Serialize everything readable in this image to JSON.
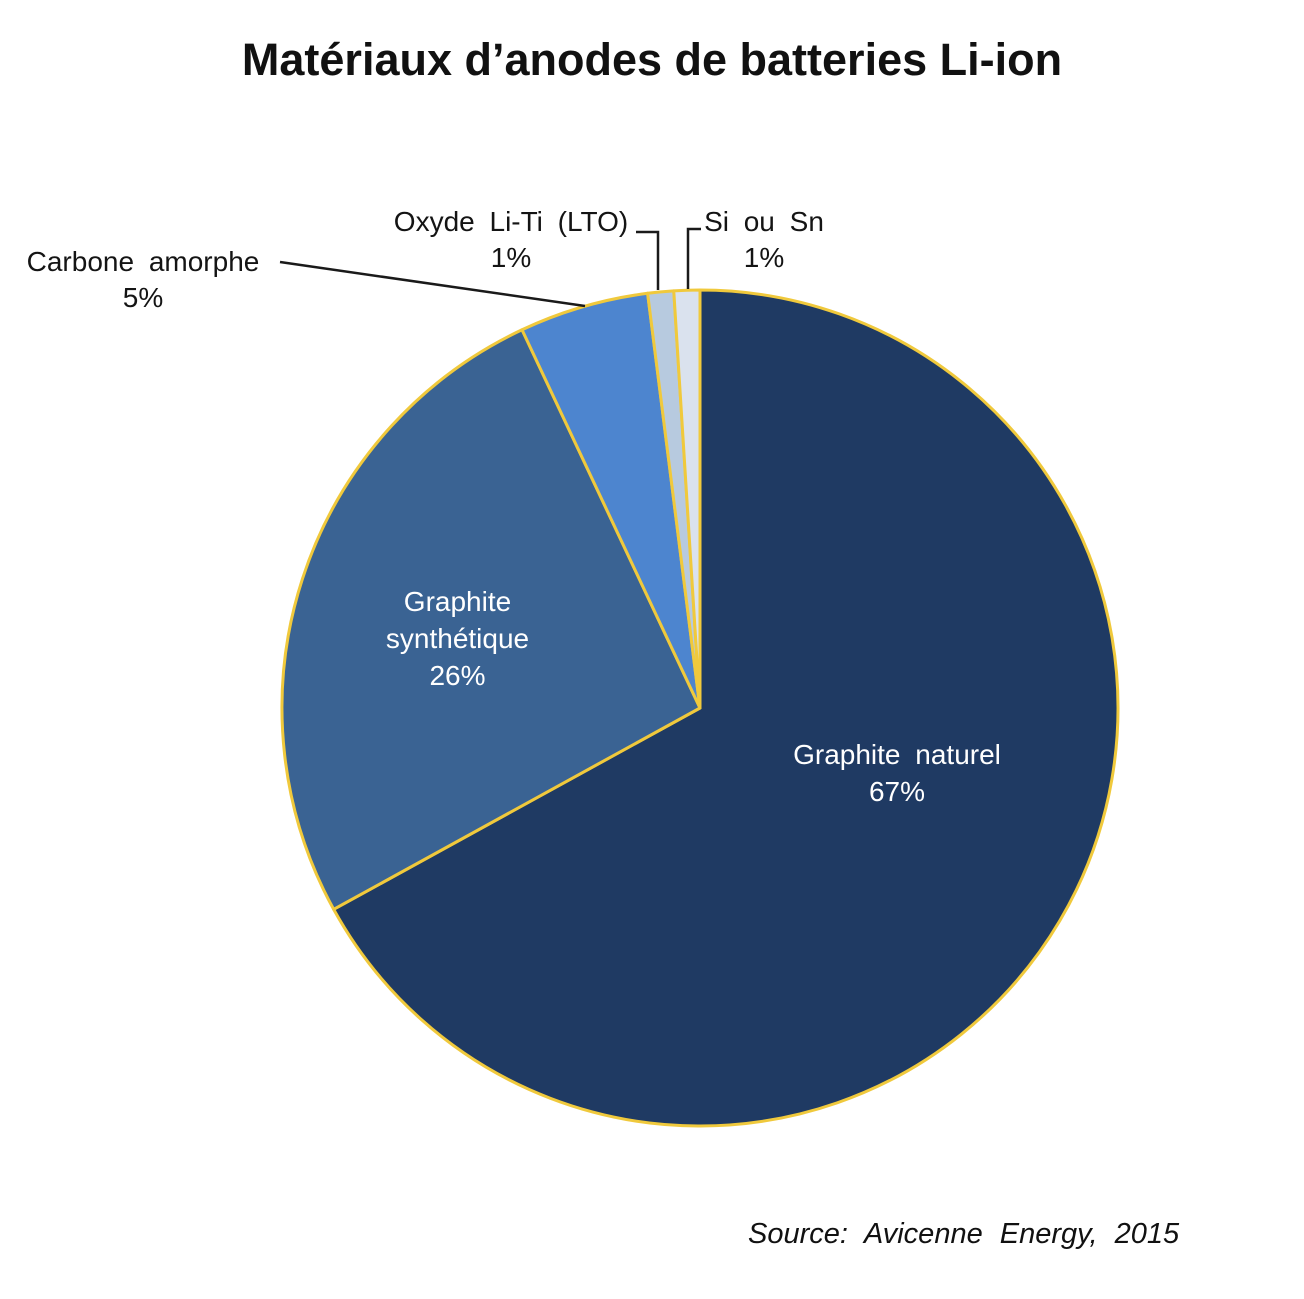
{
  "title": "Matériaux d’anodes de batteries Li-ion",
  "source": "Source: Avicenne Energy, 2015",
  "chart_data": {
    "type": "pie",
    "title": "Matériaux d’anodes de batteries Li-ion",
    "source": "Source: Avicenne Energy, 2015",
    "start_angle_deg": 0,
    "direction": "clockwise",
    "legend": "none",
    "slice_border_color": "#F0C93C",
    "background_color": "#FFFFFF",
    "slices": [
      {
        "label": "Graphite naturel",
        "value_pct": 67,
        "pct_label": "67%",
        "color": "#1F3A63",
        "label_position": "inside",
        "label_color": "#FFFFFF"
      },
      {
        "label": "Graphite synthétique",
        "value_pct": 26,
        "pct_label": "26%",
        "color": "#3A6393",
        "label_position": "inside",
        "label_color": "#FFFFFF"
      },
      {
        "label": "Carbone amorphe",
        "value_pct": 5,
        "pct_label": "5%",
        "color": "#4D85CF",
        "label_position": "outside",
        "label_color": "#141414"
      },
      {
        "label": "Oxyde Li-Ti (LTO)",
        "value_pct": 1,
        "pct_label": "1%",
        "color": "#B7CADF",
        "label_position": "outside",
        "label_color": "#141414"
      },
      {
        "label": "Si ou Sn",
        "value_pct": 1,
        "pct_label": "1%",
        "color": "#DAE2EE",
        "label_position": "outside",
        "label_color": "#141414"
      }
    ]
  }
}
